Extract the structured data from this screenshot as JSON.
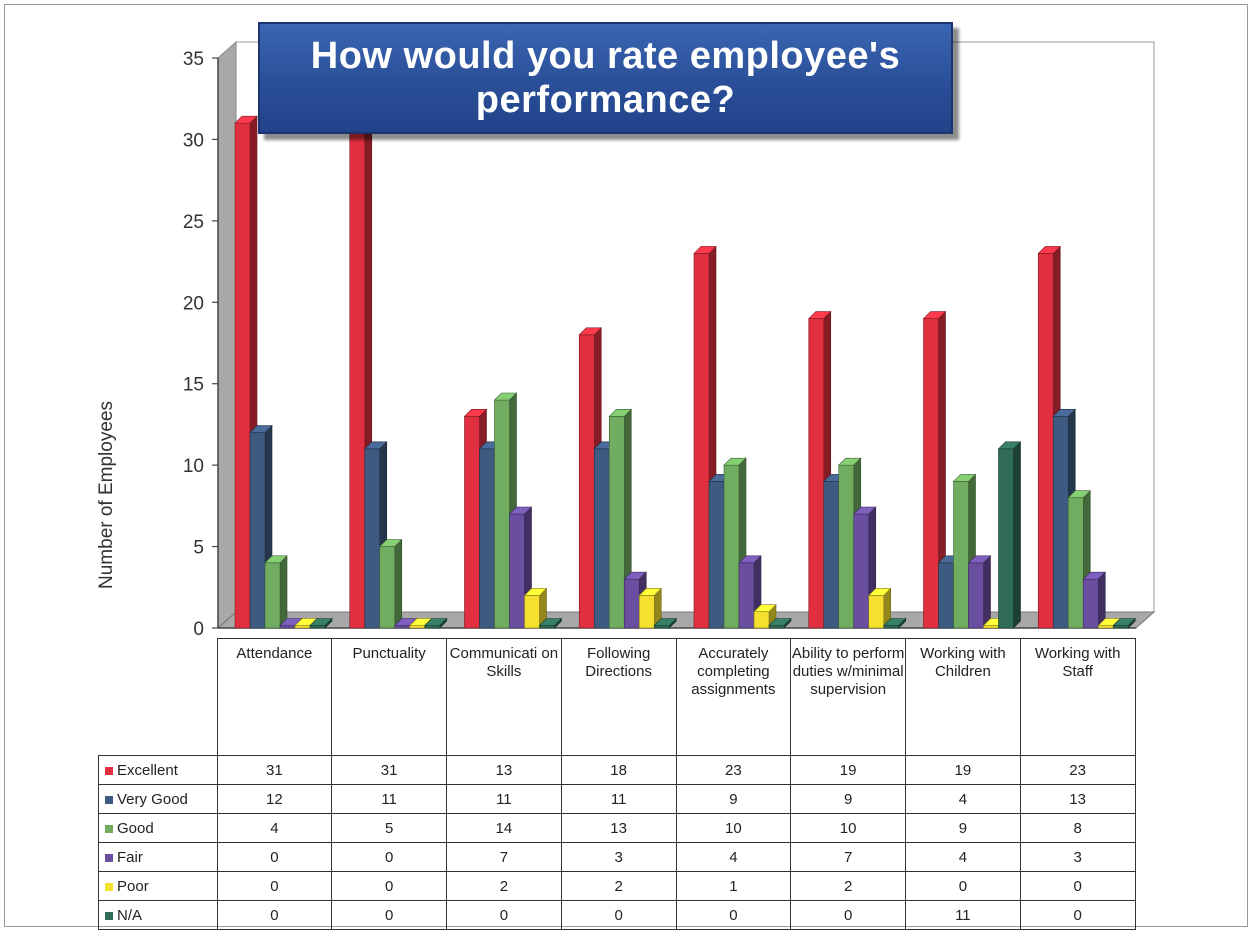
{
  "chart_data": {
    "type": "bar",
    "title": "How would you rate employee's performance?",
    "ylabel": "Number of Employees",
    "xlabel": "",
    "ylim": [
      0,
      35
    ],
    "yticks": [
      0,
      5,
      10,
      15,
      20,
      25,
      30,
      35
    ],
    "grid": false,
    "legend_placement": "table-left",
    "categories": [
      "Attendance",
      "Punctuality",
      "Communicati on Skills",
      "Following Directions",
      "Accurately completing assignments",
      "Ability to perform duties w/minimal supervision",
      "Working with Children",
      "Working with Staff"
    ],
    "series": [
      {
        "name": "Excellent",
        "color": "#e03040",
        "values": [
          31,
          31,
          13,
          18,
          23,
          19,
          19,
          23
        ]
      },
      {
        "name": "Very Good",
        "color": "#3d5a80",
        "values": [
          12,
          11,
          11,
          11,
          9,
          9,
          4,
          13
        ]
      },
      {
        "name": "Good",
        "color": "#70ad60",
        "values": [
          4,
          5,
          14,
          13,
          10,
          10,
          9,
          8
        ]
      },
      {
        "name": "Fair",
        "color": "#6a4fa0",
        "values": [
          0,
          0,
          7,
          3,
          4,
          7,
          4,
          3
        ]
      },
      {
        "name": "Poor",
        "color": "#f5e030",
        "values": [
          0,
          0,
          2,
          2,
          1,
          2,
          0,
          0
        ]
      },
      {
        "name": "N/A",
        "color": "#2f6b55",
        "values": [
          0,
          0,
          0,
          0,
          0,
          0,
          11,
          0
        ]
      }
    ]
  }
}
